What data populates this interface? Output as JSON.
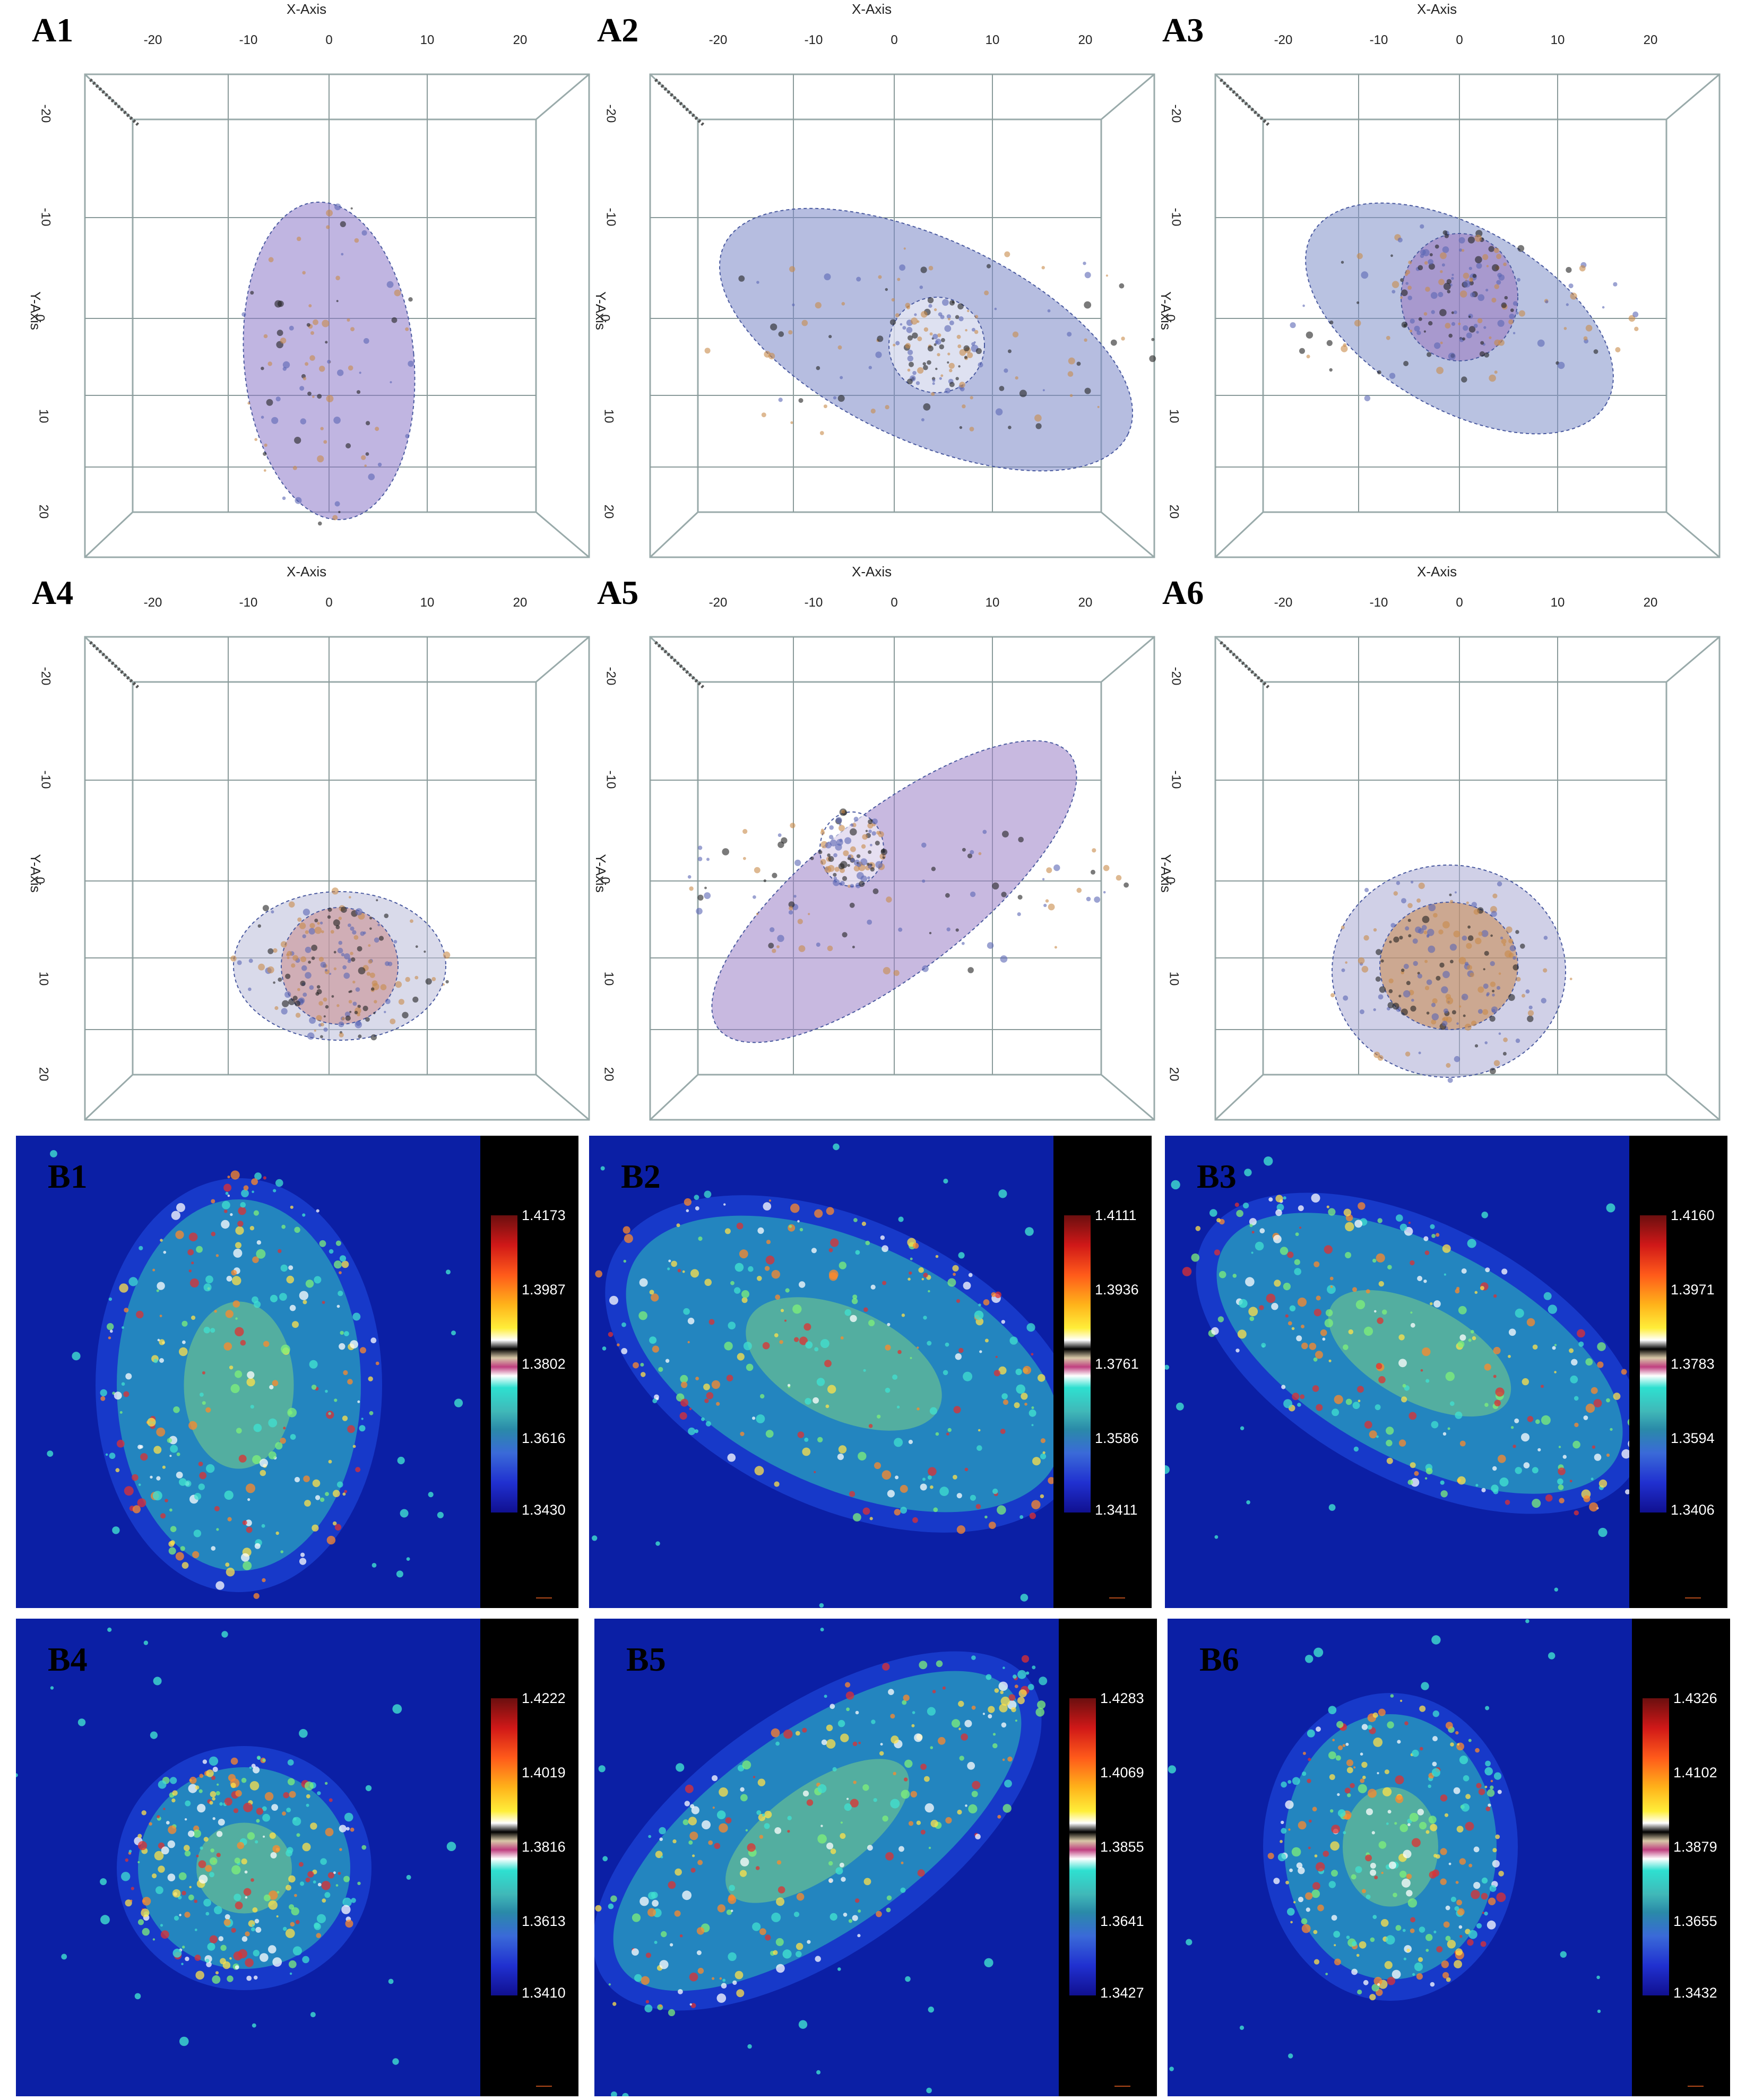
{
  "panels_a": [
    {
      "id": "A1",
      "x_axis_title": "X-Axis",
      "y_axis_title": "Y-Axis"
    },
    {
      "id": "A2",
      "x_axis_title": "X-Axis",
      "y_axis_title": "Y-Axis"
    },
    {
      "id": "A3",
      "x_axis_title": "X-Axis",
      "y_axis_title": "Y-Axis"
    },
    {
      "id": "A4",
      "x_axis_title": "X-Axis",
      "y_axis_title": "Y-Axis"
    },
    {
      "id": "A5",
      "x_axis_title": "X-Axis",
      "y_axis_title": "Y-Axis"
    },
    {
      "id": "A6",
      "x_axis_title": "X-Axis",
      "y_axis_title": "Y-Axis"
    }
  ],
  "x_ticks": [
    "-20",
    "-10",
    "0",
    "10",
    "20"
  ],
  "y_ticks": [
    "-20",
    "-10",
    "0",
    "10",
    "20"
  ],
  "panels_b": [
    {
      "id": "B1",
      "colorbar": [
        "1.4173",
        "1.3987",
        "1.3802",
        "1.3616",
        "1.3430"
      ]
    },
    {
      "id": "B2",
      "colorbar": [
        "1.4111",
        "1.3936",
        "1.3761",
        "1.3586",
        "1.3411"
      ]
    },
    {
      "id": "B3",
      "colorbar": [
        "1.4160",
        "1.3971",
        "1.3783",
        "1.3594",
        "1.3406"
      ]
    },
    {
      "id": "B4",
      "colorbar": [
        "1.4222",
        "1.4019",
        "1.3816",
        "1.3613",
        "1.3410"
      ]
    },
    {
      "id": "B5",
      "colorbar": [
        "1.4283",
        "1.4069",
        "1.3855",
        "1.3641",
        "1.3427"
      ]
    },
    {
      "id": "B6",
      "colorbar": [
        "1.4326",
        "1.4102",
        "1.3879",
        "1.3655",
        "1.3432"
      ]
    }
  ],
  "colors": {
    "background_b": "#0b1fa5",
    "cell_cyan": "#2ec4b6",
    "cell_green": "#8fe07a",
    "rendering_purple": "#8c78c8",
    "rendering_orange": "#c88b4a"
  }
}
